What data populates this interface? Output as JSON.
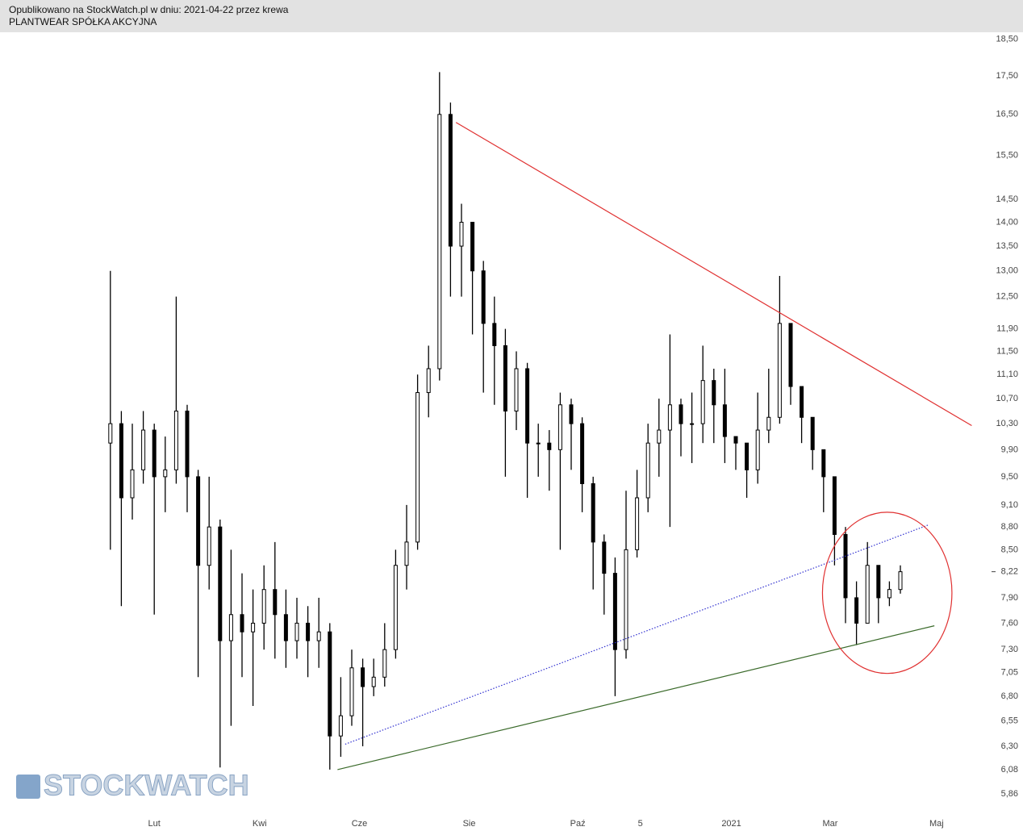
{
  "chart_data": {
    "type": "candlestick",
    "subtitle": "Opublikowano na StockWatch.pl w dniu: 2021-04-22 przez krewa",
    "title": "PLANTWEAR SPÓŁKA AKCYJNA",
    "watermark": "STOCKWATCH",
    "yscale": "log",
    "grid": false,
    "up_color": "#ffffff",
    "down_color": "#000000",
    "wick_color": "#000000",
    "xlim": [
      0,
      80
    ],
    "ylim": [
      5.71,
      18.7
    ],
    "xticks": [
      {
        "value": 4.5,
        "label": "Lut"
      },
      {
        "value": 14.1,
        "label": "Kwi"
      },
      {
        "value": 23.2,
        "label": "Cze"
      },
      {
        "value": 33.2,
        "label": "Sie"
      },
      {
        "value": 43.1,
        "label": "Paź"
      },
      {
        "value": 48.8,
        "label": "5"
      },
      {
        "value": 57.1,
        "label": "2021"
      },
      {
        "value": 66.1,
        "label": "Mar"
      },
      {
        "value": 75.8,
        "label": "Maj"
      }
    ],
    "yticks": [
      {
        "value": 18.5,
        "label": "18,50"
      },
      {
        "value": 17.5,
        "label": "17,50"
      },
      {
        "value": 16.5,
        "label": "16,50"
      },
      {
        "value": 15.5,
        "label": "15,50"
      },
      {
        "value": 14.5,
        "label": "14,50"
      },
      {
        "value": 14.0,
        "label": "14,00"
      },
      {
        "value": 13.5,
        "label": "13,50"
      },
      {
        "value": 13.0,
        "label": "13,00"
      },
      {
        "value": 12.5,
        "label": "12,50"
      },
      {
        "value": 11.9,
        "label": "11,90"
      },
      {
        "value": 11.5,
        "label": "11,50"
      },
      {
        "value": 11.1,
        "label": "11,10"
      },
      {
        "value": 10.7,
        "label": "10,70"
      },
      {
        "value": 10.3,
        "label": "10,30"
      },
      {
        "value": 9.9,
        "label": "9,90"
      },
      {
        "value": 9.5,
        "label": "9,50"
      },
      {
        "value": 9.1,
        "label": "9,10"
      },
      {
        "value": 8.8,
        "label": "8,80"
      },
      {
        "value": 8.5,
        "label": "8,50"
      },
      {
        "value": 8.22,
        "label": "8,22"
      },
      {
        "value": 7.9,
        "label": "7,90"
      },
      {
        "value": 7.6,
        "label": "7,60"
      },
      {
        "value": 7.3,
        "label": "7,30"
      },
      {
        "value": 7.05,
        "label": "7,05"
      },
      {
        "value": 6.8,
        "label": "6,80"
      },
      {
        "value": 6.55,
        "label": "6,55"
      },
      {
        "value": 6.3,
        "label": "6,30"
      },
      {
        "value": 6.08,
        "label": "6,08"
      },
      {
        "value": 5.86,
        "label": "5,86"
      }
    ],
    "last_price": 8.22,
    "x": [
      0.5,
      1.5,
      2.5,
      3.5,
      4.5,
      5.5,
      6.5,
      7.5,
      8.5,
      9.5,
      10.5,
      11.5,
      12.5,
      13.5,
      14.5,
      15.5,
      16.5,
      17.5,
      18.5,
      19.5,
      20.5,
      21.5,
      22.5,
      23.5,
      24.5,
      25.5,
      26.5,
      27.5,
      28.5,
      29.5,
      30.5,
      31.5,
      32.5,
      33.5,
      34.5,
      35.5,
      36.5,
      37.5,
      38.5,
      39.5,
      40.5,
      41.5,
      42.5,
      43.5,
      44.5,
      45.5,
      46.5,
      47.5,
      48.5,
      49.5,
      50.5,
      51.5,
      52.5,
      53.5,
      54.5,
      55.5,
      56.5,
      57.5,
      58.5,
      59.5,
      60.5,
      61.5,
      62.5,
      63.5,
      64.5,
      65.5,
      66.5,
      67.5,
      68.5,
      69.5,
      70.5,
      71.5,
      72.5
    ],
    "open": [
      10.0,
      10.3,
      9.2,
      9.6,
      10.2,
      9.5,
      9.6,
      10.5,
      9.5,
      8.3,
      8.8,
      7.4,
      7.7,
      7.5,
      7.6,
      8.0,
      7.7,
      7.4,
      7.6,
      7.4,
      7.5,
      6.4,
      6.6,
      7.1,
      6.9,
      7.0,
      7.3,
      8.3,
      8.6,
      10.8,
      11.2,
      16.5,
      13.5,
      14.0,
      13.0,
      12.0,
      11.6,
      10.5,
      11.2,
      10.0,
      10.0,
      9.9,
      10.6,
      10.3,
      9.4,
      8.6,
      8.2,
      7.3,
      8.5,
      9.2,
      10.0,
      10.2,
      10.6,
      10.3,
      10.3,
      11.0,
      10.6,
      10.1,
      10.0,
      9.6,
      10.2,
      10.4,
      12.0,
      10.9,
      10.4,
      9.9,
      9.5,
      8.7,
      7.9,
      7.6,
      8.3,
      7.9,
      8.0
    ],
    "high": [
      13.0,
      10.5,
      10.3,
      10.5,
      10.3,
      10.1,
      12.5,
      10.6,
      9.6,
      9.5,
      8.9,
      8.5,
      8.2,
      8.0,
      8.3,
      8.6,
      8.0,
      7.9,
      7.8,
      7.9,
      7.6,
      7.0,
      7.3,
      7.2,
      7.2,
      7.6,
      8.5,
      9.1,
      11.1,
      11.6,
      17.6,
      16.8,
      14.4,
      14.0,
      13.2,
      12.5,
      11.9,
      11.5,
      11.3,
      10.3,
      10.2,
      10.8,
      10.7,
      10.4,
      9.5,
      8.7,
      8.4,
      9.3,
      9.6,
      10.3,
      10.7,
      11.8,
      10.7,
      10.8,
      11.6,
      11.2,
      11.2,
      10.1,
      10.0,
      10.8,
      11.2,
      12.9,
      12.0,
      10.9,
      10.4,
      9.9,
      9.5,
      8.8,
      8.1,
      8.6,
      8.3,
      8.1,
      8.3
    ],
    "low": [
      8.5,
      7.8,
      8.9,
      9.4,
      7.7,
      9.0,
      9.4,
      9.0,
      7.0,
      8.0,
      6.1,
      6.5,
      7.0,
      6.7,
      7.3,
      7.2,
      7.1,
      7.2,
      7.0,
      7.1,
      6.08,
      6.2,
      6.5,
      6.3,
      6.8,
      6.9,
      7.2,
      8.0,
      8.5,
      10.4,
      11.0,
      12.5,
      12.5,
      11.8,
      10.8,
      10.6,
      9.5,
      10.2,
      9.2,
      9.5,
      9.3,
      8.5,
      9.6,
      9.0,
      8.0,
      7.7,
      6.8,
      7.2,
      8.4,
      9.0,
      9.5,
      8.8,
      9.8,
      9.7,
      10.0,
      10.0,
      9.7,
      9.6,
      9.2,
      9.4,
      10.0,
      10.3,
      10.6,
      10.0,
      9.6,
      9.0,
      8.3,
      7.6,
      7.35,
      7.6,
      7.6,
      7.8,
      7.95
    ],
    "close": [
      10.3,
      9.2,
      9.6,
      10.2,
      9.5,
      9.6,
      10.5,
      9.5,
      8.3,
      8.8,
      7.4,
      7.7,
      7.5,
      7.6,
      8.0,
      7.7,
      7.4,
      7.6,
      7.4,
      7.5,
      6.4,
      6.6,
      7.1,
      6.9,
      7.0,
      7.3,
      8.3,
      8.6,
      10.8,
      11.2,
      16.5,
      13.5,
      14.0,
      13.0,
      12.0,
      11.6,
      10.5,
      11.2,
      10.0,
      10.0,
      9.9,
      10.6,
      10.3,
      9.4,
      8.6,
      8.2,
      7.3,
      8.5,
      9.2,
      10.0,
      10.2,
      10.6,
      10.3,
      10.3,
      11.0,
      10.6,
      10.1,
      10.0,
      9.6,
      10.2,
      10.4,
      12.0,
      10.9,
      10.4,
      9.9,
      9.5,
      8.7,
      7.9,
      7.6,
      8.3,
      7.9,
      8.0,
      8.22
    ],
    "lines": [
      {
        "color": "#e03030",
        "style": "solid",
        "x": [
          32.0,
          79.0
        ],
        "y": [
          16.3,
          10.27
        ]
      },
      {
        "color": "#3030d0",
        "style": "dotted",
        "x": [
          21.9,
          75.1
        ],
        "y": [
          6.32,
          8.83
        ]
      },
      {
        "color": "#3a6a2a",
        "style": "solid",
        "x": [
          21.2,
          75.6
        ],
        "y": [
          6.08,
          7.57
        ]
      }
    ],
    "ellipse": {
      "color": "#e03030",
      "x": [
        65.4,
        77.2
      ],
      "y": [
        7.04,
        9.0
      ]
    }
  }
}
